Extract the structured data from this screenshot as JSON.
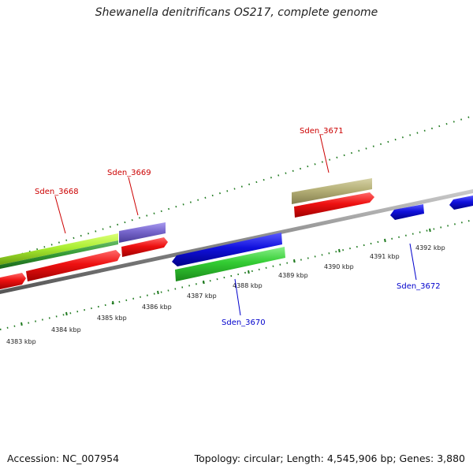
{
  "title": "Shewanella denitrificans OS217, complete genome",
  "footer": {
    "accession": "Accession: NC_007954",
    "summary": "Topology: circular; Length: 4,545,906 bp; Genes: 3,880"
  },
  "ruler": {
    "ticks": [
      "4383 kbp",
      "4384 kbp",
      "4385 kbp",
      "4386 kbp",
      "4387 kbp",
      "4388 kbp",
      "4389 kbp",
      "4390 kbp",
      "4391 kbp",
      "4392 kbp"
    ]
  },
  "gene_labels": {
    "sden_3668": "Sden_3668",
    "sden_3669": "Sden_3669",
    "sden_3670": "Sden_3670",
    "sden_3671": "Sden_3671",
    "sden_3672": "Sden_3672"
  },
  "colors": {
    "forward_label": "#cc0000",
    "reverse_label": "#0000cc",
    "cds_red": "#ee1111",
    "cds_blue": "#1111dd",
    "gene_green": "#33cc33",
    "lime": "#aaee33",
    "purple": "#7766cc",
    "olive": "#b5b077",
    "backbone": "#888888",
    "tick": "#1f7a1f"
  }
}
